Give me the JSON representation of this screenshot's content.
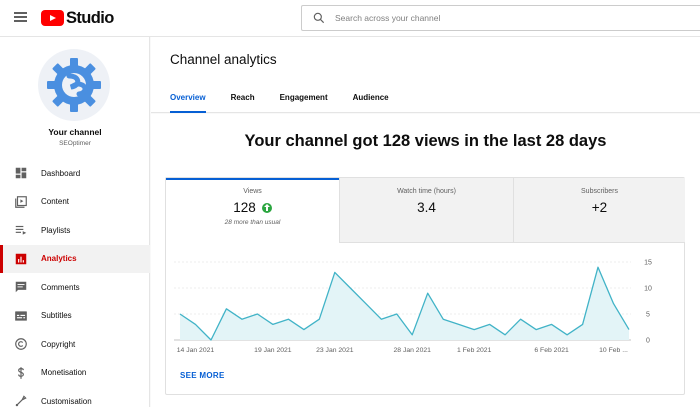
{
  "app": {
    "logo_text": "Studio",
    "brand_color": "#ff0000",
    "accent_color": "#065fd4"
  },
  "search": {
    "placeholder": "Search across your channel",
    "value": ""
  },
  "sidebar": {
    "channel_title": "Your channel",
    "channel_handle": "SEOptimer",
    "items": [
      {
        "label": "Dashboard",
        "icon": "dashboard-icon",
        "active": false
      },
      {
        "label": "Content",
        "icon": "content-icon",
        "active": false
      },
      {
        "label": "Playlists",
        "icon": "playlists-icon",
        "active": false
      },
      {
        "label": "Analytics",
        "icon": "analytics-icon",
        "active": true
      },
      {
        "label": "Comments",
        "icon": "comments-icon",
        "active": false
      },
      {
        "label": "Subtitles",
        "icon": "subtitles-icon",
        "active": false
      },
      {
        "label": "Copyright",
        "icon": "copyright-icon",
        "active": false
      },
      {
        "label": "Monetisation",
        "icon": "monetisation-icon",
        "active": false
      },
      {
        "label": "Customisation",
        "icon": "customisation-icon",
        "active": false
      }
    ]
  },
  "page": {
    "title": "Channel analytics",
    "tabs": [
      {
        "label": "Overview",
        "active": true
      },
      {
        "label": "Reach",
        "active": false
      },
      {
        "label": "Engagement",
        "active": false
      },
      {
        "label": "Audience",
        "active": false
      }
    ],
    "headline": "Your channel got 128 views in the last 28 days"
  },
  "metrics": [
    {
      "label": "Views",
      "value": "128",
      "trend": "up",
      "note": "28 more than usual"
    },
    {
      "label": "Watch time (hours)",
      "value": "3.4"
    },
    {
      "label": "Subscribers",
      "value": "+2"
    }
  ],
  "chart_data": {
    "type": "area",
    "x": [
      "13 Jan 2021",
      "14 Jan 2021",
      "15 Jan 2021",
      "16 Jan 2021",
      "17 Jan 2021",
      "18 Jan 2021",
      "19 Jan 2021",
      "20 Jan 2021",
      "21 Jan 2021",
      "22 Jan 2021",
      "23 Jan 2021",
      "24 Jan 2021",
      "25 Jan 2021",
      "26 Jan 2021",
      "27 Jan 2021",
      "28 Jan 2021",
      "29 Jan 2021",
      "30 Jan 2021",
      "31 Jan 2021",
      "1 Feb 2021",
      "2 Feb 2021",
      "3 Feb 2021",
      "4 Feb 2021",
      "5 Feb 2021",
      "6 Feb 2021",
      "7 Feb 2021",
      "8 Feb 2021",
      "9 Feb 2021",
      "10 Feb 2021",
      "11 Feb 2021"
    ],
    "series": [
      {
        "values": [
          5,
          3,
          0,
          6,
          4,
          5,
          3,
          4,
          2,
          4,
          13,
          10,
          7,
          4,
          5,
          1,
          9,
          4,
          3,
          2,
          3,
          1,
          4,
          2,
          3,
          1,
          3,
          14,
          7,
          2
        ]
      }
    ],
    "x_tick_labels": [
      "14 Jan 2021",
      "19 Jan 2021",
      "23 Jan 2021",
      "28 Jan 2021",
      "1 Feb 2021",
      "6 Feb 2021",
      "10 Feb ..."
    ],
    "x_tick_index": [
      1,
      6,
      10,
      15,
      19,
      24,
      28
    ],
    "y_ticks": [
      0,
      5,
      10,
      15
    ],
    "ylim": [
      0,
      15
    ],
    "y_axis_position": "right",
    "grid": "horizontal",
    "line_color": "#41b3c7",
    "fill_color": "#e3f4f7"
  },
  "see_more_label": "SEE MORE"
}
